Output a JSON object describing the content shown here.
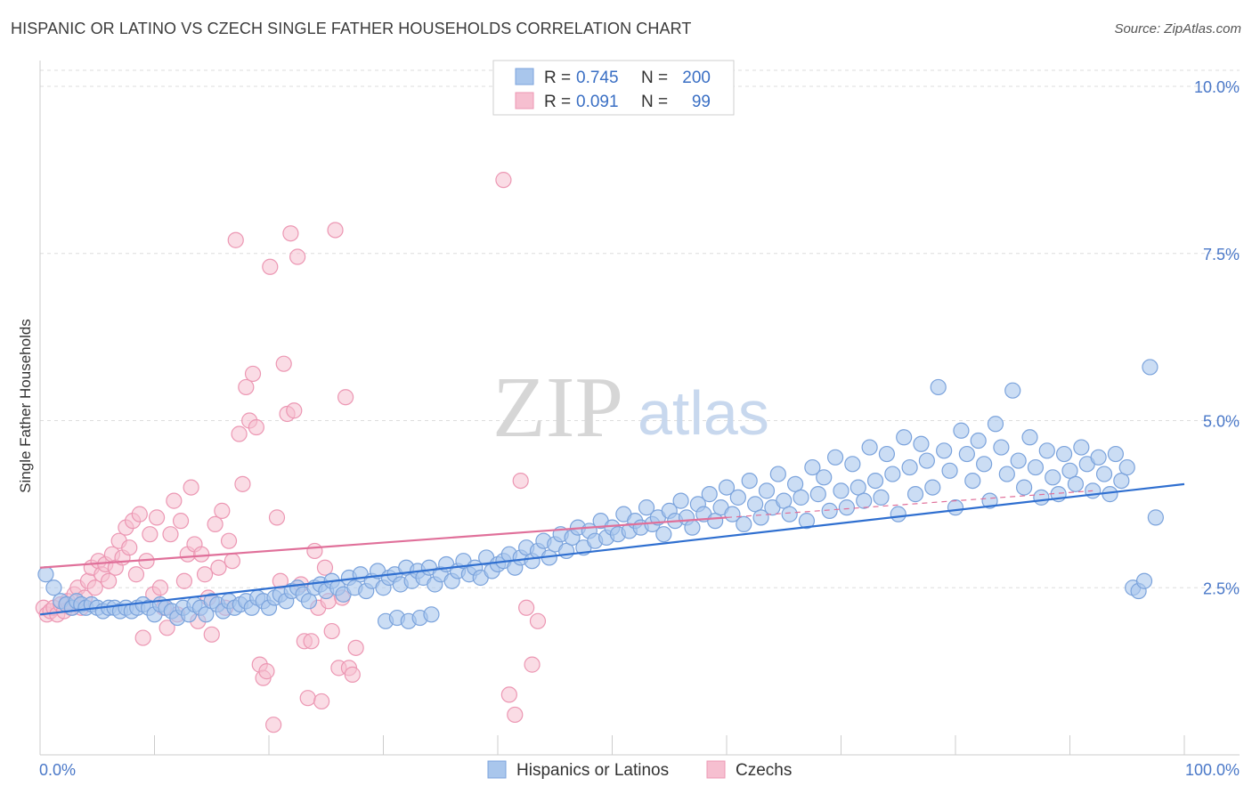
{
  "header": {
    "title": "HISPANIC OR LATINO VS CZECH SINGLE FATHER HOUSEHOLDS CORRELATION CHART",
    "source": "Source: ZipAtlas.com"
  },
  "watermark": {
    "zip": "ZIP",
    "atlas": "atlas"
  },
  "stats": [
    {
      "r_label": "R =",
      "r": "0.745",
      "n_label": "N =",
      "n": "200"
    },
    {
      "r_label": "R =",
      "r": "0.091",
      "n_label": "N =",
      "n": "99"
    }
  ],
  "colors": {
    "blue_fill": "#a9c6ec",
    "blue_stroke": "#7ba3dc",
    "blue_line": "#2f6fd0",
    "pink_fill": "#f6bfd0",
    "pink_stroke": "#ec97b3",
    "pink_line": "#e0709a",
    "tick_text": "#4a78c8",
    "grid": "#dddddd"
  },
  "chart_data": {
    "type": "scatter",
    "title": "HISPANIC OR LATINO VS CZECH SINGLE FATHER HOUSEHOLDS CORRELATION CHART",
    "xlabel": "",
    "ylabel": "Single Father Households",
    "xlim": [
      0,
      100
    ],
    "ylim": [
      0,
      10
    ],
    "x_tick_labels": [
      "0.0%",
      "100.0%"
    ],
    "y_tick_labels": [
      "2.5%",
      "5.0%",
      "7.5%",
      "10.0%"
    ],
    "y_ticks": [
      2.5,
      5.0,
      7.5,
      10.0
    ],
    "grid": true,
    "legend_position": "bottom-center",
    "series": [
      {
        "name": "Hispanics or Latinos",
        "color": "#a9c6ec",
        "trend": {
          "x": [
            0,
            100
          ],
          "y": [
            2.1,
            4.05
          ]
        },
        "points": [
          [
            0.5,
            2.7
          ],
          [
            1.2,
            2.5
          ],
          [
            1.8,
            2.3
          ],
          [
            2.3,
            2.25
          ],
          [
            2.8,
            2.2
          ],
          [
            3.2,
            2.3
          ],
          [
            3.6,
            2.25
          ],
          [
            4,
            2.2
          ],
          [
            4.5,
            2.25
          ],
          [
            5,
            2.2
          ],
          [
            5.5,
            2.15
          ],
          [
            6,
            2.2
          ],
          [
            6.5,
            2.2
          ],
          [
            7,
            2.15
          ],
          [
            7.5,
            2.2
          ],
          [
            8,
            2.15
          ],
          [
            8.5,
            2.2
          ],
          [
            9,
            2.25
          ],
          [
            9.5,
            2.2
          ],
          [
            10,
            2.1
          ],
          [
            10.5,
            2.25
          ],
          [
            11,
            2.2
          ],
          [
            11.5,
            2.15
          ],
          [
            12,
            2.05
          ],
          [
            12.5,
            2.2
          ],
          [
            13,
            2.1
          ],
          [
            13.5,
            2.25
          ],
          [
            14,
            2.2
          ],
          [
            14.5,
            2.1
          ],
          [
            15,
            2.3
          ],
          [
            15.5,
            2.25
          ],
          [
            16,
            2.15
          ],
          [
            16.5,
            2.3
          ],
          [
            17,
            2.2
          ],
          [
            17.5,
            2.25
          ],
          [
            18,
            2.3
          ],
          [
            18.5,
            2.2
          ],
          [
            19,
            2.35
          ],
          [
            19.5,
            2.3
          ],
          [
            20,
            2.2
          ],
          [
            20.5,
            2.35
          ],
          [
            21,
            2.4
          ],
          [
            21.5,
            2.3
          ],
          [
            22,
            2.45
          ],
          [
            22.5,
            2.5
          ],
          [
            23,
            2.4
          ],
          [
            23.5,
            2.3
          ],
          [
            24,
            2.5
          ],
          [
            24.5,
            2.55
          ],
          [
            25,
            2.45
          ],
          [
            25.5,
            2.6
          ],
          [
            26,
            2.5
          ],
          [
            26.5,
            2.4
          ],
          [
            27,
            2.65
          ],
          [
            27.5,
            2.5
          ],
          [
            28,
            2.7
          ],
          [
            28.5,
            2.45
          ],
          [
            29,
            2.6
          ],
          [
            29.5,
            2.75
          ],
          [
            30,
            2.5
          ],
          [
            30.5,
            2.65
          ],
          [
            31,
            2.7
          ],
          [
            31.5,
            2.55
          ],
          [
            32,
            2.8
          ],
          [
            32.5,
            2.6
          ],
          [
            33,
            2.75
          ],
          [
            33.5,
            2.65
          ],
          [
            34,
            2.8
          ],
          [
            34.5,
            2.55
          ],
          [
            35,
            2.7
          ],
          [
            35.5,
            2.85
          ],
          [
            36,
            2.6
          ],
          [
            36.5,
            2.75
          ],
          [
            37,
            2.9
          ],
          [
            37.5,
            2.7
          ],
          [
            38,
            2.8
          ],
          [
            38.5,
            2.65
          ],
          [
            39,
            2.95
          ],
          [
            39.5,
            2.75
          ],
          [
            40,
            2.85
          ],
          [
            40.5,
            2.9
          ],
          [
            41,
            3.0
          ],
          [
            41.5,
            2.8
          ],
          [
            42,
            2.95
          ],
          [
            42.5,
            3.1
          ],
          [
            43,
            2.9
          ],
          [
            43.5,
            3.05
          ],
          [
            44,
            3.2
          ],
          [
            44.5,
            2.95
          ],
          [
            45,
            3.15
          ],
          [
            45.5,
            3.3
          ],
          [
            46,
            3.05
          ],
          [
            46.5,
            3.25
          ],
          [
            47,
            3.4
          ],
          [
            47.5,
            3.1
          ],
          [
            48,
            3.35
          ],
          [
            48.5,
            3.2
          ],
          [
            49,
            3.5
          ],
          [
            49.5,
            3.25
          ],
          [
            50,
            3.4
          ],
          [
            50.5,
            3.3
          ],
          [
            51,
            3.6
          ],
          [
            51.5,
            3.35
          ],
          [
            52,
            3.5
          ],
          [
            52.5,
            3.4
          ],
          [
            53,
            3.7
          ],
          [
            53.5,
            3.45
          ],
          [
            54,
            3.55
          ],
          [
            54.5,
            3.3
          ],
          [
            55,
            3.65
          ],
          [
            55.5,
            3.5
          ],
          [
            56,
            3.8
          ],
          [
            56.5,
            3.55
          ],
          [
            57,
            3.4
          ],
          [
            57.5,
            3.75
          ],
          [
            58,
            3.6
          ],
          [
            58.5,
            3.9
          ],
          [
            59,
            3.5
          ],
          [
            59.5,
            3.7
          ],
          [
            60,
            4.0
          ],
          [
            60.5,
            3.6
          ],
          [
            61,
            3.85
          ],
          [
            61.5,
            3.45
          ],
          [
            62,
            4.1
          ],
          [
            62.5,
            3.75
          ],
          [
            63,
            3.55
          ],
          [
            63.5,
            3.95
          ],
          [
            64,
            3.7
          ],
          [
            64.5,
            4.2
          ],
          [
            65,
            3.8
          ],
          [
            65.5,
            3.6
          ],
          [
            66,
            4.05
          ],
          [
            66.5,
            3.85
          ],
          [
            67,
            3.5
          ],
          [
            67.5,
            4.3
          ],
          [
            68,
            3.9
          ],
          [
            68.5,
            4.15
          ],
          [
            69,
            3.65
          ],
          [
            69.5,
            4.45
          ],
          [
            70,
            3.95
          ],
          [
            70.5,
            3.7
          ],
          [
            71,
            4.35
          ],
          [
            71.5,
            4.0
          ],
          [
            72,
            3.8
          ],
          [
            72.5,
            4.6
          ],
          [
            73,
            4.1
          ],
          [
            73.5,
            3.85
          ],
          [
            74,
            4.5
          ],
          [
            74.5,
            4.2
          ],
          [
            75,
            3.6
          ],
          [
            75.5,
            4.75
          ],
          [
            76,
            4.3
          ],
          [
            76.5,
            3.9
          ],
          [
            77,
            4.65
          ],
          [
            77.5,
            4.4
          ],
          [
            78,
            4.0
          ],
          [
            78.5,
            5.5
          ],
          [
            79,
            4.55
          ],
          [
            79.5,
            4.25
          ],
          [
            80,
            3.7
          ],
          [
            80.5,
            4.85
          ],
          [
            81,
            4.5
          ],
          [
            81.5,
            4.1
          ],
          [
            82,
            4.7
          ],
          [
            82.5,
            4.35
          ],
          [
            83,
            3.8
          ],
          [
            83.5,
            4.95
          ],
          [
            84,
            4.6
          ],
          [
            84.5,
            4.2
          ],
          [
            85,
            5.45
          ],
          [
            85.5,
            4.4
          ],
          [
            86,
            4.0
          ],
          [
            86.5,
            4.75
          ],
          [
            87,
            4.3
          ],
          [
            87.5,
            3.85
          ],
          [
            88,
            4.55
          ],
          [
            88.5,
            4.15
          ],
          [
            89,
            3.9
          ],
          [
            89.5,
            4.5
          ],
          [
            90,
            4.25
          ],
          [
            90.5,
            4.05
          ],
          [
            91,
            4.6
          ],
          [
            91.5,
            4.35
          ],
          [
            92,
            3.95
          ],
          [
            92.5,
            4.45
          ],
          [
            93,
            4.2
          ],
          [
            93.5,
            3.9
          ],
          [
            94,
            4.5
          ],
          [
            94.5,
            4.1
          ],
          [
            95,
            4.3
          ],
          [
            95.5,
            2.5
          ],
          [
            96,
            2.45
          ],
          [
            96.5,
            2.6
          ],
          [
            97,
            5.8
          ],
          [
            97.5,
            3.55
          ],
          [
            30.2,
            2.0
          ],
          [
            31.2,
            2.05
          ],
          [
            32.2,
            2.0
          ],
          [
            33.2,
            2.05
          ],
          [
            34.2,
            2.1
          ]
        ]
      },
      {
        "name": "Czechs",
        "color": "#f6bfd0",
        "trend": {
          "x": [
            0,
            60
          ],
          "y": [
            2.8,
            3.55
          ]
        },
        "points": [
          [
            0.3,
            2.2
          ],
          [
            0.6,
            2.1
          ],
          [
            0.9,
            2.15
          ],
          [
            1.2,
            2.2
          ],
          [
            1.5,
            2.1
          ],
          [
            1.8,
            2.25
          ],
          [
            2.1,
            2.15
          ],
          [
            2.4,
            2.3
          ],
          [
            2.7,
            2.2
          ],
          [
            3,
            2.4
          ],
          [
            3.3,
            2.5
          ],
          [
            3.6,
            2.2
          ],
          [
            3.9,
            2.35
          ],
          [
            4.2,
            2.6
          ],
          [
            4.5,
            2.8
          ],
          [
            4.8,
            2.5
          ],
          [
            5.1,
            2.9
          ],
          [
            5.4,
            2.7
          ],
          [
            5.7,
            2.85
          ],
          [
            6,
            2.6
          ],
          [
            6.3,
            3.0
          ],
          [
            6.6,
            2.8
          ],
          [
            6.9,
            3.2
          ],
          [
            7.2,
            2.95
          ],
          [
            7.5,
            3.4
          ],
          [
            7.8,
            3.1
          ],
          [
            8.1,
            3.5
          ],
          [
            8.4,
            2.7
          ],
          [
            8.7,
            3.6
          ],
          [
            9,
            1.75
          ],
          [
            9.3,
            2.9
          ],
          [
            9.6,
            3.3
          ],
          [
            9.9,
            2.4
          ],
          [
            10.2,
            3.55
          ],
          [
            10.5,
            2.5
          ],
          [
            10.8,
            2.2
          ],
          [
            11.1,
            1.9
          ],
          [
            11.4,
            3.3
          ],
          [
            11.7,
            3.8
          ],
          [
            12,
            2.1
          ],
          [
            12.3,
            3.5
          ],
          [
            12.6,
            2.6
          ],
          [
            12.9,
            3.0
          ],
          [
            13.2,
            4.0
          ],
          [
            13.5,
            3.15
          ],
          [
            13.8,
            2.0
          ],
          [
            14.1,
            3.0
          ],
          [
            14.4,
            2.7
          ],
          [
            14.7,
            2.35
          ],
          [
            15,
            1.8
          ],
          [
            15.3,
            3.45
          ],
          [
            15.6,
            2.8
          ],
          [
            15.9,
            3.65
          ],
          [
            16.2,
            2.2
          ],
          [
            16.5,
            3.2
          ],
          [
            16.8,
            2.9
          ],
          [
            17.1,
            7.7
          ],
          [
            17.4,
            4.8
          ],
          [
            17.7,
            4.05
          ],
          [
            18,
            5.5
          ],
          [
            18.3,
            5.0
          ],
          [
            18.6,
            5.7
          ],
          [
            18.9,
            4.9
          ],
          [
            19.2,
            1.35
          ],
          [
            19.5,
            1.15
          ],
          [
            19.8,
            1.25
          ],
          [
            20.1,
            7.3
          ],
          [
            20.4,
            0.45
          ],
          [
            20.7,
            3.55
          ],
          [
            21,
            2.6
          ],
          [
            21.3,
            5.85
          ],
          [
            21.6,
            5.1
          ],
          [
            21.9,
            7.8
          ],
          [
            22.2,
            5.15
          ],
          [
            22.5,
            7.45
          ],
          [
            22.8,
            2.55
          ],
          [
            23.1,
            1.7
          ],
          [
            23.4,
            0.85
          ],
          [
            23.7,
            1.7
          ],
          [
            24,
            3.05
          ],
          [
            24.3,
            2.2
          ],
          [
            24.6,
            0.8
          ],
          [
            24.9,
            2.8
          ],
          [
            25.2,
            2.3
          ],
          [
            25.5,
            1.85
          ],
          [
            25.8,
            7.85
          ],
          [
            26.1,
            1.3
          ],
          [
            26.4,
            2.35
          ],
          [
            26.7,
            5.35
          ],
          [
            27,
            1.3
          ],
          [
            27.3,
            1.2
          ],
          [
            27.6,
            1.6
          ],
          [
            40.5,
            8.6
          ],
          [
            41,
            0.9
          ],
          [
            41.5,
            0.6
          ],
          [
            42,
            4.1
          ],
          [
            42.5,
            2.2
          ],
          [
            43,
            1.35
          ],
          [
            43.5,
            2.0
          ]
        ]
      }
    ]
  }
}
